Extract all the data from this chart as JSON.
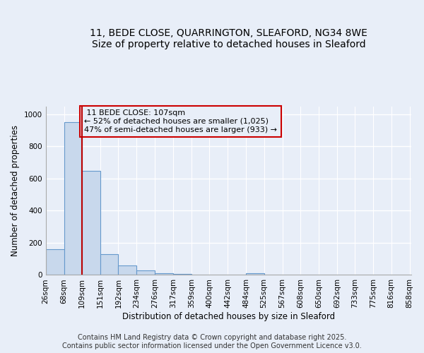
{
  "title_line1": "11, BEDE CLOSE, QUARRINGTON, SLEAFORD, NG34 8WE",
  "title_line2": "Size of property relative to detached houses in Sleaford",
  "xlabel": "Distribution of detached houses by size in Sleaford",
  "ylabel": "Number of detached properties",
  "bin_edges": [
    26,
    68,
    109,
    151,
    192,
    234,
    276,
    317,
    359,
    400,
    442,
    484,
    525,
    567,
    608,
    650,
    692,
    733,
    775,
    816,
    858
  ],
  "bar_heights": [
    160,
    950,
    650,
    130,
    60,
    30,
    12,
    5,
    0,
    0,
    0,
    13,
    0,
    0,
    0,
    0,
    0,
    0,
    0,
    0
  ],
  "bar_color": "#c8d8ec",
  "bar_edge_color": "#6699cc",
  "vline_x": 109,
  "vline_color": "#bb0000",
  "annotation_title": "11 BEDE CLOSE: 107sqm",
  "annotation_line2": "← 52% of detached houses are smaller (1,025)",
  "annotation_line3": "47% of semi-detached houses are larger (933) →",
  "annotation_box_color": "#cc0000",
  "ylim": [
    0,
    1050
  ],
  "yticks": [
    0,
    200,
    400,
    600,
    800,
    1000
  ],
  "background_color": "#e8eef8",
  "grid_color": "#ffffff",
  "footer_line1": "Contains HM Land Registry data © Crown copyright and database right 2025.",
  "footer_line2": "Contains public sector information licensed under the Open Government Licence v3.0.",
  "title_fontsize": 10,
  "axis_label_fontsize": 8.5,
  "tick_fontsize": 7.5,
  "annotation_fontsize": 8,
  "footer_fontsize": 7
}
